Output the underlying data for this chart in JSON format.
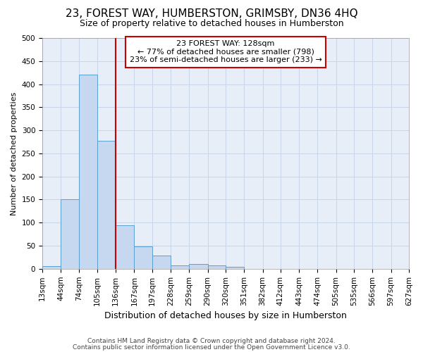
{
  "title": "23, FOREST WAY, HUMBERSTON, GRIMSBY, DN36 4HQ",
  "subtitle": "Size of property relative to detached houses in Humberston",
  "xlabel": "Distribution of detached houses by size in Humberston",
  "ylabel": "Number of detached properties",
  "footnote1": "Contains HM Land Registry data © Crown copyright and database right 2024.",
  "footnote2": "Contains public sector information licensed under the Open Government Licence v3.0.",
  "annotation_line1": "23 FOREST WAY: 128sqm",
  "annotation_line2": "← 77% of detached houses are smaller (798)",
  "annotation_line3": "23% of semi-detached houses are larger (233) →",
  "bar_edges": [
    13,
    44,
    74,
    105,
    136,
    167,
    197,
    228,
    259,
    290,
    320,
    351,
    382,
    412,
    443,
    474,
    505,
    535,
    566,
    597,
    627
  ],
  "bar_heights": [
    6,
    150,
    420,
    278,
    95,
    48,
    28,
    8,
    10,
    8,
    5,
    0,
    0,
    0,
    0,
    0,
    0,
    0,
    0,
    0
  ],
  "bar_color": "#c5d8f0",
  "bar_edge_color": "#5a9fd4",
  "vline_color": "#cc0000",
  "vline_x": 136,
  "ylim": [
    0,
    500
  ],
  "yticks": [
    0,
    50,
    100,
    150,
    200,
    250,
    300,
    350,
    400,
    450,
    500
  ],
  "grid_color": "#c8d4e8",
  "background_color": "#e8eef8",
  "fig_background": "#ffffff",
  "title_fontsize": 11,
  "subtitle_fontsize": 9,
  "xlabel_fontsize": 9,
  "ylabel_fontsize": 8,
  "footnote_fontsize": 6.5,
  "annotation_fontsize": 8,
  "tick_fontsize": 7.5
}
